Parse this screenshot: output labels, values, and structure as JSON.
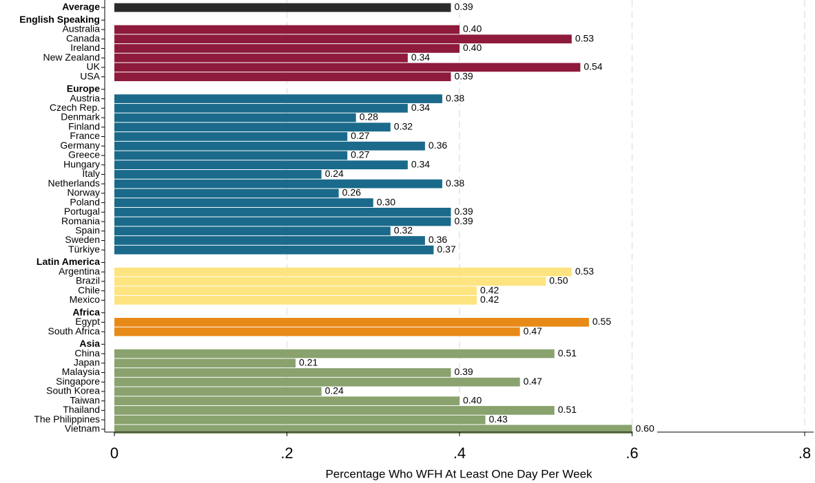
{
  "chart_data": {
    "type": "bar",
    "orientation": "horizontal",
    "xlabel": "Percentage Who WFH At Least One Day Per Week",
    "xlim": [
      0,
      0.8
    ],
    "xticks": [
      0,
      {
        "value": 0.2,
        "label": ".2"
      },
      {
        "value": 0.4,
        "label": ".4"
      },
      {
        "value": 0.6,
        "label": ".6"
      },
      {
        "value": 0.8,
        "label": ".8"
      }
    ],
    "grid": true,
    "groups": [
      {
        "name": "Average",
        "color": "#2b2b2b",
        "values": [
          0.39
        ],
        "value_labels": [
          "0.39"
        ]
      },
      {
        "name": "English Speaking",
        "color": "#8e1b3c",
        "categories": [
          "Australia",
          "Canada",
          "Ireland",
          "New Zealand",
          "UK",
          "USA"
        ],
        "values": [
          0.4,
          0.53,
          0.4,
          0.34,
          0.54,
          0.39
        ],
        "value_labels": [
          "0.40",
          "0.53",
          "0.40",
          "0.34",
          "0.54",
          "0.39"
        ]
      },
      {
        "name": "Europe",
        "color": "#1b6a8b",
        "categories": [
          "Austria",
          "Czech Rep.",
          "Denmark",
          "Finland",
          "France",
          "Germany",
          "Greece",
          "Hungary",
          "Italy",
          "Netherlands",
          "Norway",
          "Poland",
          "Portugal",
          "Romania",
          "Spain",
          "Sweden",
          "Türkiye"
        ],
        "values": [
          0.38,
          0.34,
          0.28,
          0.32,
          0.27,
          0.36,
          0.27,
          0.34,
          0.24,
          0.38,
          0.26,
          0.3,
          0.39,
          0.39,
          0.32,
          0.36,
          0.37
        ],
        "value_labels": [
          "0.38",
          "0.34",
          "0.28",
          "0.32",
          "0.27",
          "0.36",
          "0.27",
          "0.34",
          "0.24",
          "0.38",
          "0.26",
          "0.30",
          "0.39",
          "0.39",
          "0.32",
          "0.36",
          "0.37"
        ]
      },
      {
        "name": "Latin America",
        "color": "#fde480",
        "categories": [
          "Argentina",
          "Brazil",
          "Chile",
          "Mexico"
        ],
        "values": [
          0.53,
          0.5,
          0.42,
          0.42
        ],
        "value_labels": [
          "0.53",
          "0.50",
          "0.42",
          "0.42"
        ]
      },
      {
        "name": "Africa",
        "color": "#e88a18",
        "categories": [
          "Egypt",
          "South Africa"
        ],
        "values": [
          0.55,
          0.47
        ],
        "value_labels": [
          "0.55",
          "0.47"
        ]
      },
      {
        "name": "Asia",
        "color": "#89a26e",
        "categories": [
          "China",
          "Japan",
          "Malaysia",
          "Singapore",
          "South Korea",
          "Taiwan",
          "Thailand",
          "The Philippines",
          "Vietnam"
        ],
        "values": [
          0.51,
          0.21,
          0.39,
          0.47,
          0.24,
          0.4,
          0.51,
          0.43,
          0.6
        ],
        "value_labels": [
          "0.51",
          "0.21",
          "0.39",
          "0.47",
          "0.24",
          "0.40",
          "0.51",
          "0.43",
          "0.60"
        ]
      }
    ]
  }
}
